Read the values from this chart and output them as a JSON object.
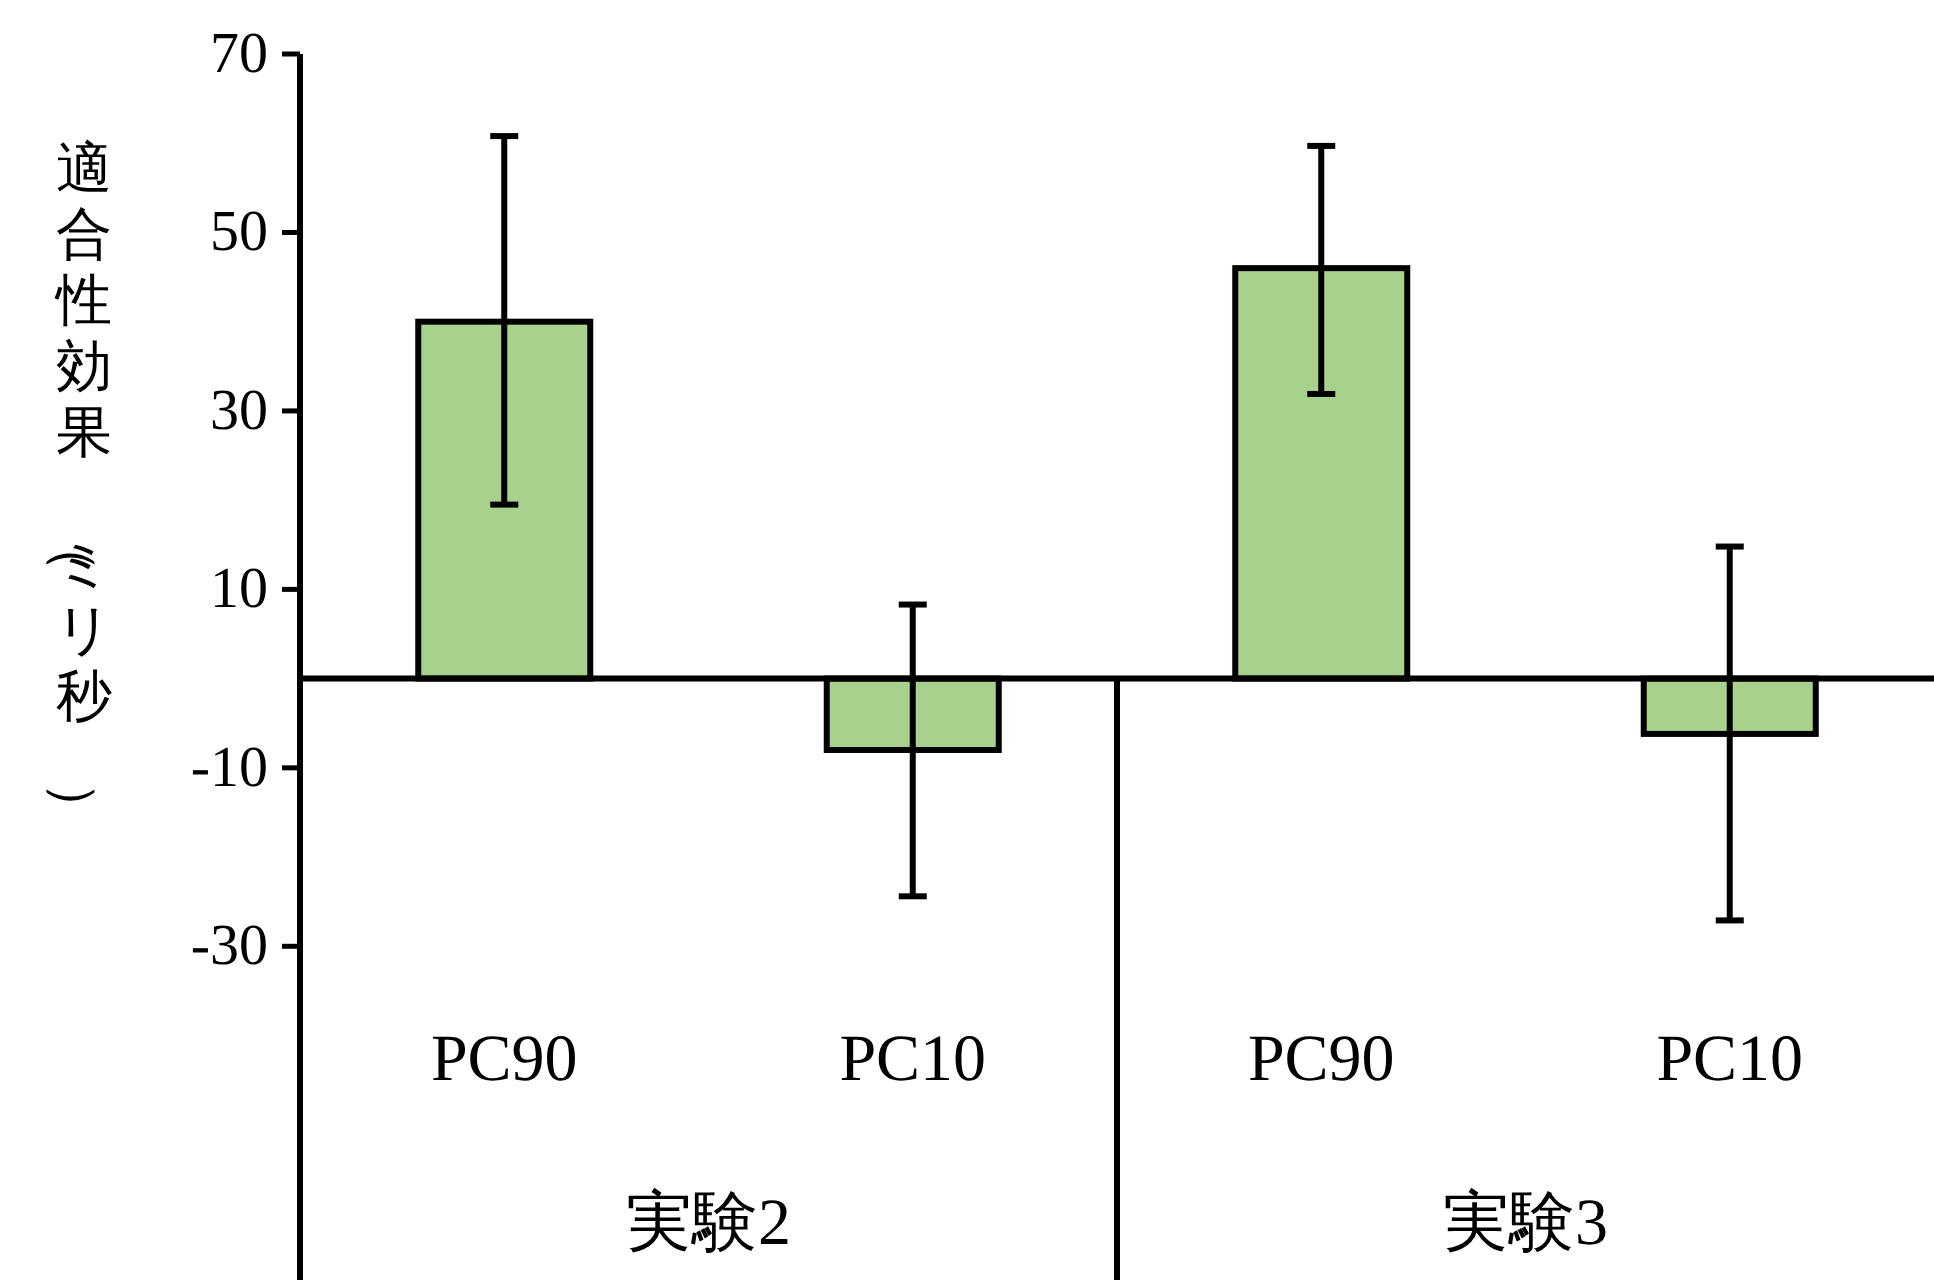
{
  "chart_data": {
    "type": "bar",
    "ylabel": "適合性効果（ミリ秒）",
    "categories": [
      "PC90",
      "PC10",
      "PC90",
      "PC10"
    ],
    "values": [
      40,
      -8,
      46,
      -6.2
    ],
    "errors": [
      [
        19.5,
        60.8
      ],
      [
        -24.4,
        8.3
      ],
      [
        31.9,
        59.7
      ],
      [
        -27.1,
        14.8
      ]
    ],
    "color": "#a9d18e",
    "ylim": [
      -67.4,
      70
    ],
    "yticks": [
      -30,
      -10,
      10,
      30,
      50,
      70
    ],
    "grid": false,
    "legend": false,
    "annotations": [
      "実験2",
      "実験3"
    ]
  }
}
